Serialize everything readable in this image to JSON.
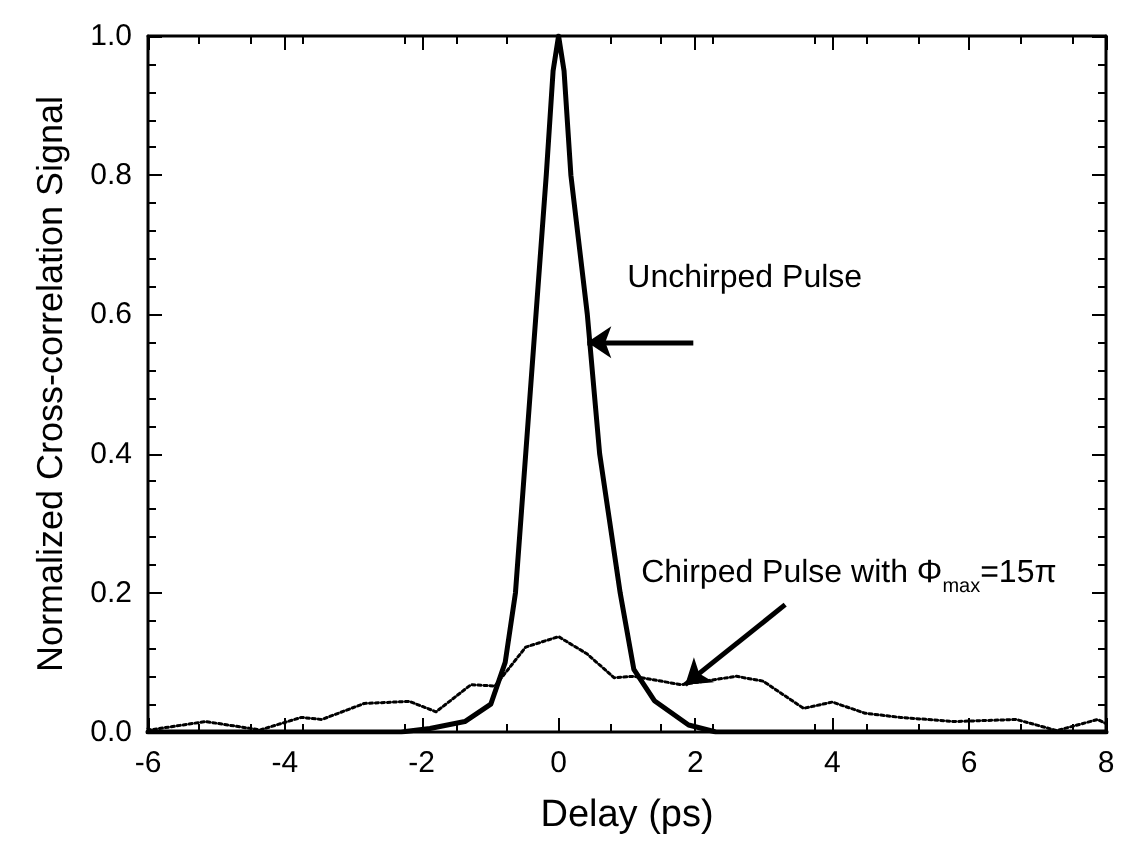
{
  "chart_data": {
    "type": "line",
    "xlabel": "Delay (ps)",
    "ylabel": "Normalized Cross-correlation Signal",
    "xlim": [
      -6,
      8
    ],
    "xticks": [
      -6,
      -4,
      -2,
      0,
      2,
      4,
      6,
      8
    ],
    "ylim": [
      0,
      1
    ],
    "yticks": [
      {
        "value": 0,
        "label": "0.0"
      },
      {
        "value": 0.2,
        "label": "0.2"
      },
      {
        "value": 0.4,
        "label": "0.4"
      },
      {
        "value": 0.6,
        "label": "0.6"
      },
      {
        "value": 0.8,
        "label": "0.8"
      },
      {
        "value": 1,
        "label": "1.0"
      }
    ],
    "grid": false,
    "marker": "none",
    "series": [
      {
        "color": "#000000",
        "line_style": "solid",
        "x": [
          -6,
          -2.3,
          -1.88,
          -1.37,
          -0.99,
          -0.78,
          -0.63,
          -0.48,
          -0.33,
          -0.18,
          -0.08,
          0,
          0.08,
          0.18,
          0.42,
          0.6,
          0.75,
          0.9,
          1.1,
          1.4,
          1.9,
          2.3,
          8
        ],
        "values": [
          0,
          0,
          0.005,
          0.015,
          0.04,
          0.1,
          0.2,
          0.4,
          0.6,
          0.8,
          0.95,
          1.0,
          0.95,
          0.8,
          0.6,
          0.4,
          0.3,
          0.2,
          0.09,
          0.045,
          0.01,
          0,
          0
        ]
      },
      {
        "color": "#000000",
        "line_style": "dotted",
        "x": [
          -6,
          -5.97,
          -5.16,
          -4.36,
          -3.76,
          -3.46,
          -2.84,
          -2.18,
          -1.79,
          -1.28,
          -0.93,
          -0.48,
          0,
          0.42,
          0.81,
          1.1,
          1.79,
          2.6,
          2.99,
          3.58,
          4.0,
          4.48,
          4.99,
          5.79,
          6.69,
          7.28,
          7.88,
          8
        ],
        "values": [
          0.005,
          0.003,
          0.015,
          0.003,
          0.021,
          0.018,
          0.041,
          0.044,
          0.029,
          0.068,
          0.066,
          0.122,
          0.137,
          0.112,
          0.078,
          0.08,
          0.068,
          0.08,
          0.073,
          0.034,
          0.043,
          0.027,
          0.021,
          0.015,
          0.018,
          0.002,
          0.018,
          0.012
        ]
      }
    ],
    "annotations": [
      {
        "text": "Unchirped Pulse",
        "x": 0.42,
        "y": 0.56
      },
      {
        "text": "Chirped Pulse with Φ$_{max}$=15π",
        "x": 1.85,
        "y": 0.068
      }
    ]
  }
}
